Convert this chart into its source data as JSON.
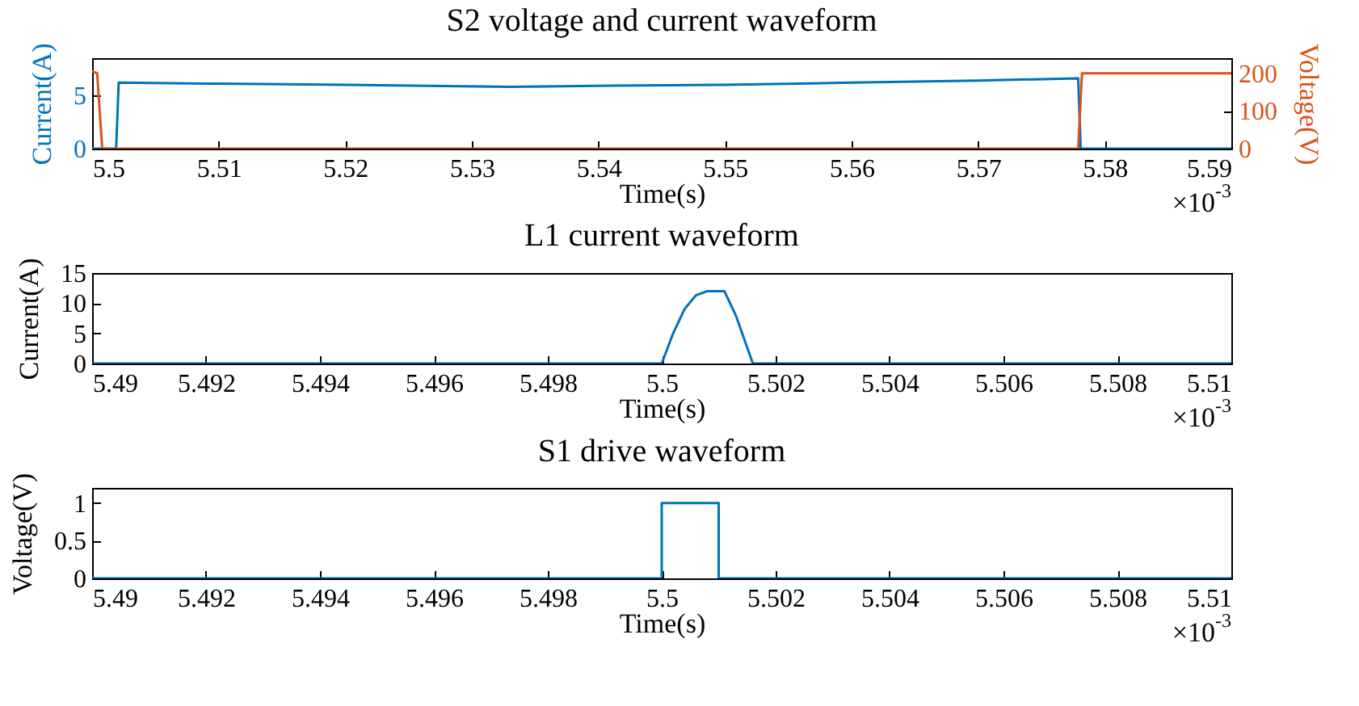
{
  "chart_data": [
    {
      "type": "line",
      "title": "S2 voltage and current waveform",
      "xlabel": "Time(s)",
      "ylabel": "Current(A)",
      "y2label": "Voltage(V)",
      "xlim": [
        5.5,
        5.59
      ],
      "xticks": [
        5.5,
        5.51,
        5.52,
        5.53,
        5.54,
        5.55,
        5.56,
        5.57,
        5.58,
        5.59
      ],
      "ylim": [
        0,
        8.5
      ],
      "yticks": [
        0,
        5
      ],
      "y2lim": [
        0,
        240
      ],
      "y2ticks": [
        0,
        100,
        200
      ],
      "series": [
        {
          "color": "#0072bd",
          "x": [
            5.5,
            5.5019,
            5.5021,
            5.51,
            5.52,
            5.533,
            5.54,
            5.55,
            5.56,
            5.57,
            5.5779,
            5.5781,
            5.59
          ],
          "values": [
            0,
            0,
            6.2,
            6.1,
            6.0,
            5.8,
            5.9,
            6.0,
            6.2,
            6.4,
            6.6,
            0,
            0
          ]
        },
        {
          "color": "#d95319",
          "axis": "y2",
          "x": [
            5.5,
            5.5004,
            5.5008,
            5.5779,
            5.5782,
            5.59
          ],
          "values": [
            205,
            200,
            0,
            0,
            200,
            200
          ]
        }
      ],
      "annotations": [
        "×10$^{-3}$"
      ]
    },
    {
      "type": "line",
      "title": "L1 current waveform",
      "xlabel": "Time(s)",
      "ylabel": "Current(A)",
      "xlim": [
        5.49,
        5.51
      ],
      "xticks": [
        5.49,
        5.492,
        5.494,
        5.496,
        5.498,
        5.5,
        5.502,
        5.504,
        5.506,
        5.508,
        5.51
      ],
      "ylim": [
        0,
        15
      ],
      "yticks": [
        0,
        5,
        10,
        15
      ],
      "series": [
        {
          "color": "#0072bd",
          "x": [
            5.49,
            5.5,
            5.5002,
            5.5004,
            5.5006,
            5.5008,
            5.5011,
            5.5013,
            5.5016,
            5.51
          ],
          "values": [
            0,
            0,
            5,
            9,
            11.3,
            12,
            12,
            8,
            0,
            0
          ]
        }
      ],
      "annotations": [
        "×10$^{-3}$"
      ]
    },
    {
      "type": "line",
      "title": "S1 drive waveform",
      "xlabel": "Time(s)",
      "ylabel": "Voltage(V)",
      "xlim": [
        5.49,
        5.51
      ],
      "xticks": [
        5.49,
        5.492,
        5.494,
        5.496,
        5.498,
        5.5,
        5.502,
        5.504,
        5.506,
        5.508,
        5.51
      ],
      "ylim": [
        0,
        1.2
      ],
      "yticks": [
        0,
        0.5,
        1
      ],
      "series": [
        {
          "color": "#0072bd",
          "x": [
            5.49,
            5.5,
            5.5,
            5.501,
            5.501,
            5.51
          ],
          "values": [
            0,
            0,
            1,
            1,
            0,
            0
          ]
        }
      ],
      "annotations": [
        "×10$^{-3}$"
      ]
    }
  ]
}
